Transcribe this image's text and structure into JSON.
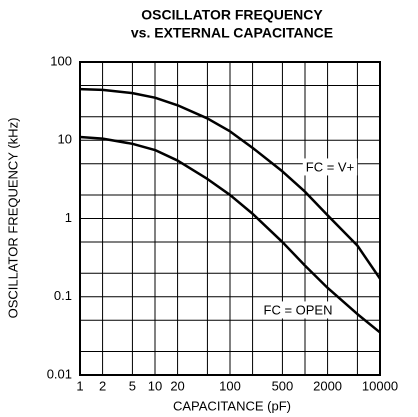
{
  "chart_data": {
    "type": "line",
    "title": "OSCILLATOR FREQUENCY",
    "subtitle": "vs. EXTERNAL CAPACITANCE",
    "xlabel": "CAPACITANCE (pF)",
    "ylabel": "OSCILLATOR  FREQUENCY (kHz)",
    "xscale": "log",
    "yscale": "log",
    "xlim": [
      1,
      10000
    ],
    "ylim": [
      0.01,
      100
    ],
    "xticks": [
      1,
      2,
      5,
      10,
      20,
      100,
      500,
      2000,
      10000
    ],
    "yticks": [
      0.01,
      0.1,
      1,
      10,
      100
    ],
    "xgrid": [
      1,
      2,
      5,
      10,
      20,
      50,
      100,
      200,
      500,
      1000,
      2000,
      5000,
      10000
    ],
    "ygrid": [
      0.01,
      0.02,
      0.05,
      0.1,
      0.2,
      0.5,
      1,
      2,
      5,
      10,
      20,
      50,
      100
    ],
    "x": [
      1,
      2,
      5,
      10,
      20,
      50,
      100,
      200,
      500,
      1000,
      2000,
      5000,
      10000
    ],
    "series": [
      {
        "name": "FC = V+",
        "color": "#000000",
        "values": [
          45,
          44,
          40,
          35,
          28,
          19,
          13,
          8,
          4,
          2.2,
          1.1,
          0.45,
          0.17
        ]
      },
      {
        "name": "FC = OPEN",
        "color": "#000000",
        "values": [
          11,
          10.5,
          9,
          7.5,
          5.5,
          3.2,
          2,
          1.15,
          0.5,
          0.25,
          0.13,
          0.06,
          0.035
        ]
      }
    ]
  }
}
